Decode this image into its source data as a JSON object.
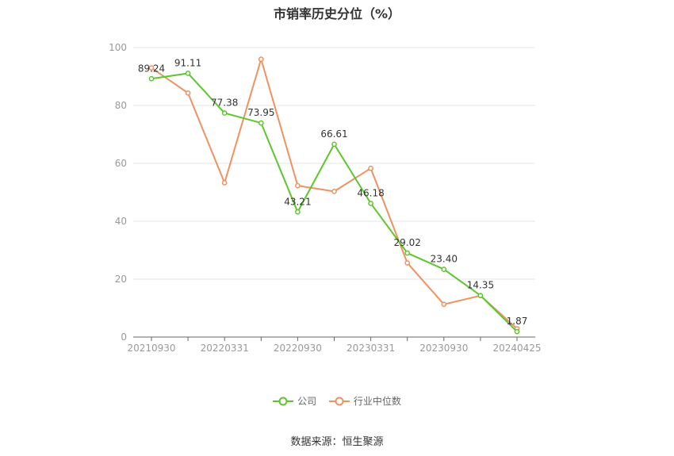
{
  "chart_data": {
    "type": "line",
    "title": "市销率历史分位（%）",
    "x": [
      "20210930",
      "20211231",
      "20220331",
      "20220630",
      "20220930",
      "20221231",
      "20230331",
      "20230630",
      "20230930",
      "20231231",
      "20240425"
    ],
    "x_tick_labels": [
      "20210930",
      "20220331",
      "20220930",
      "20230331",
      "20230930",
      "20240425"
    ],
    "ylim": [
      0,
      100
    ],
    "y_ticks": [
      0,
      20,
      40,
      60,
      80,
      100
    ],
    "grid": true,
    "legend_position": "bottom",
    "series": [
      {
        "name": "公司",
        "color": "#5cc72c",
        "values": [
          89.24,
          91.11,
          77.38,
          73.95,
          43.21,
          66.61,
          46.18,
          29.02,
          23.4,
          14.35,
          1.87
        ],
        "labels": [
          "89.24",
          "91.11",
          "77.38",
          "73.95",
          "43.21",
          "66.61",
          "46.18",
          "29.02",
          "23.40",
          "14.35",
          "1.87"
        ]
      },
      {
        "name": "行业中位数",
        "color": "#f0915f",
        "values": [
          93.0,
          84.3,
          53.3,
          96.0,
          52.3,
          50.3,
          58.3,
          25.6,
          11.3,
          14.3,
          2.9
        ]
      }
    ]
  },
  "source": "数据来源：恒生聚源"
}
